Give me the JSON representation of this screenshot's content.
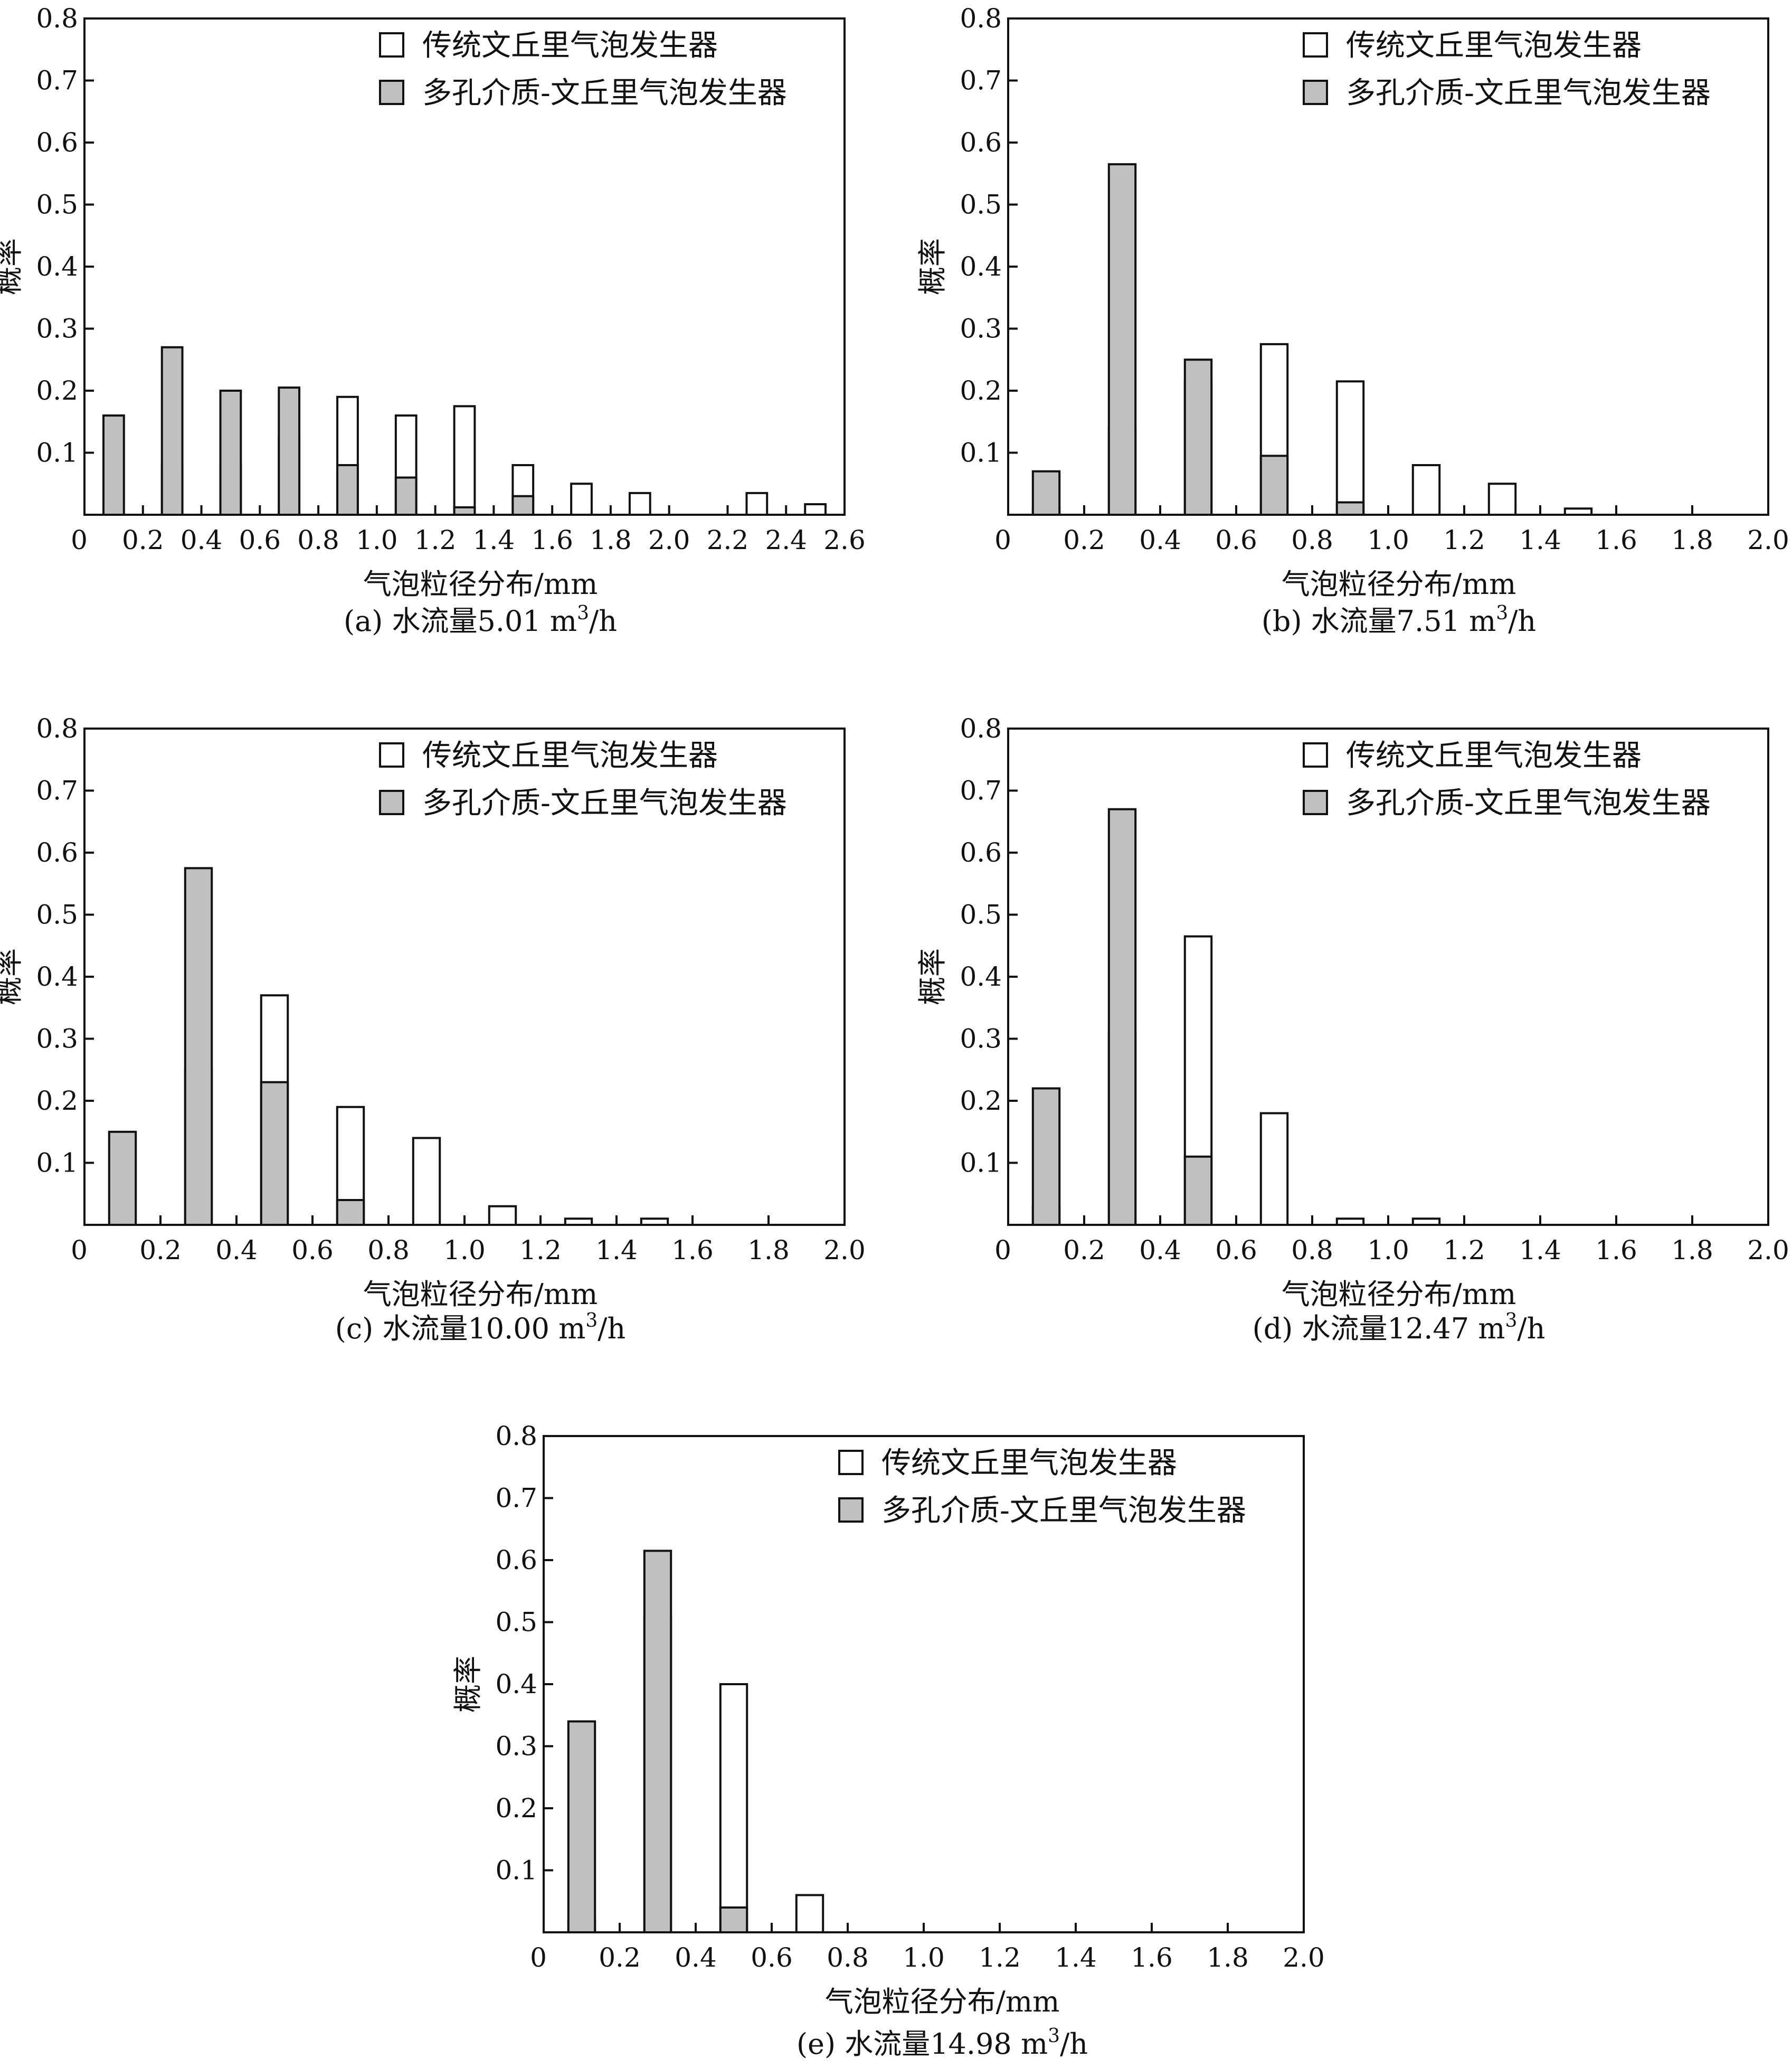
{
  "legend": {
    "traditional": "传统文丘里气泡发生器",
    "porous": "多孔介质-文丘里气泡发生器"
  },
  "colors": {
    "traditional_fill": "#ffffff",
    "porous_fill": "#c0c0c0",
    "stroke": "#111111"
  },
  "chart_data": [
    {
      "id": "a",
      "type": "bar",
      "caption_prefix": "(a) 水流量5.01 m",
      "caption_sup": "3",
      "caption_suffix": "/h",
      "xlabel": "气泡粒径分布/mm",
      "ylabel": "概率",
      "xlim": [
        0,
        2.6
      ],
      "ylim": [
        0,
        0.8
      ],
      "xticks": [
        0.2,
        0.4,
        0.6,
        0.8,
        1.0,
        1.2,
        1.4,
        1.6,
        1.8,
        2.0,
        2.2,
        2.4,
        2.6
      ],
      "xtick_labels": [
        "0.2",
        "0.4",
        "0.6",
        "0.8",
        "1.0",
        "1.2",
        "1.4",
        "1.6",
        "1.8",
        "2.0",
        "2.2",
        "2.4",
        "2.6"
      ],
      "yticks": [
        0.1,
        0.2,
        0.3,
        0.4,
        0.5,
        0.6,
        0.7,
        0.8
      ],
      "ytick_labels": [
        "0.1",
        "0.2",
        "0.3",
        "0.4",
        "0.5",
        "0.6",
        "0.7",
        "0.8"
      ],
      "origin_label": "0",
      "bar_width": 0.07,
      "series": [
        {
          "name": "传统文丘里气泡发生器",
          "x": [
            0.3,
            0.5,
            0.7,
            0.9,
            1.1,
            1.3,
            1.5,
            1.7,
            1.9,
            2.3,
            2.5
          ],
          "values": [
            0.08,
            0.08,
            0.125,
            0.19,
            0.16,
            0.175,
            0.08,
            0.05,
            0.035,
            0.035,
            0.017
          ]
        },
        {
          "name": "多孔介质-文丘里气泡发生器",
          "x": [
            0.1,
            0.3,
            0.5,
            0.7,
            0.9,
            1.1,
            1.3,
            1.5
          ],
          "values": [
            0.16,
            0.27,
            0.2,
            0.205,
            0.08,
            0.06,
            0.012,
            0.03
          ]
        }
      ]
    },
    {
      "id": "b",
      "type": "bar",
      "caption_prefix": "(b) 水流量7.51 m",
      "caption_sup": "3",
      "caption_suffix": "/h",
      "xlabel": "气泡粒径分布/mm",
      "ylabel": "概率",
      "xlim": [
        0,
        2.0
      ],
      "ylim": [
        0,
        0.8
      ],
      "xticks": [
        0.2,
        0.4,
        0.6,
        0.8,
        1.0,
        1.2,
        1.4,
        1.6,
        1.8,
        2.0
      ],
      "xtick_labels": [
        "0.2",
        "0.4",
        "0.6",
        "0.8",
        "1.0",
        "1.2",
        "1.4",
        "1.6",
        "1.8",
        "2.0"
      ],
      "yticks": [
        0.1,
        0.2,
        0.3,
        0.4,
        0.5,
        0.6,
        0.7,
        0.8
      ],
      "ytick_labels": [
        "0.1",
        "0.2",
        "0.3",
        "0.4",
        "0.5",
        "0.6",
        "0.7",
        "0.8"
      ],
      "origin_label": "0",
      "bar_width": 0.07,
      "series": [
        {
          "name": "传统文丘里气泡发生器",
          "x": [
            0.1,
            0.3,
            0.5,
            0.7,
            0.9,
            1.1,
            1.3,
            1.5
          ],
          "values": [
            0.01,
            0.14,
            0.215,
            0.275,
            0.215,
            0.08,
            0.05,
            0.01
          ]
        },
        {
          "name": "多孔介质-文丘里气泡发生器",
          "x": [
            0.1,
            0.3,
            0.5,
            0.7,
            0.9
          ],
          "values": [
            0.07,
            0.565,
            0.25,
            0.095,
            0.02
          ]
        }
      ]
    },
    {
      "id": "c",
      "type": "bar",
      "caption_prefix": "(c) 水流量10.00 m",
      "caption_sup": "3",
      "caption_suffix": "/h",
      "xlabel": "气泡粒径分布/mm",
      "ylabel": "概率",
      "xlim": [
        0,
        2.0
      ],
      "ylim": [
        0,
        0.8
      ],
      "xticks": [
        0.2,
        0.4,
        0.6,
        0.8,
        1.0,
        1.2,
        1.4,
        1.6,
        1.8,
        2.0
      ],
      "xtick_labels": [
        "0.2",
        "0.4",
        "0.6",
        "0.8",
        "1.0",
        "1.2",
        "1.4",
        "1.6",
        "1.8",
        "2.0"
      ],
      "yticks": [
        0.1,
        0.2,
        0.3,
        0.4,
        0.5,
        0.6,
        0.7,
        0.8
      ],
      "ytick_labels": [
        "0.1",
        "0.2",
        "0.3",
        "0.4",
        "0.5",
        "0.6",
        "0.7",
        "0.8"
      ],
      "origin_label": "0",
      "bar_width": 0.07,
      "series": [
        {
          "name": "传统文丘里气泡发生器",
          "x": [
            0.3,
            0.5,
            0.7,
            0.9,
            1.1,
            1.3,
            1.5
          ],
          "values": [
            0.25,
            0.37,
            0.19,
            0.14,
            0.03,
            0.01,
            0.01
          ]
        },
        {
          "name": "多孔介质-文丘里气泡发生器",
          "x": [
            0.1,
            0.3,
            0.5,
            0.7
          ],
          "values": [
            0.15,
            0.575,
            0.23,
            0.04
          ]
        }
      ]
    },
    {
      "id": "d",
      "type": "bar",
      "caption_prefix": "(d) 水流量12.47 m",
      "caption_sup": "3",
      "caption_suffix": "/h",
      "xlabel": "气泡粒径分布/mm",
      "ylabel": "概率",
      "xlim": [
        0,
        2.0
      ],
      "ylim": [
        0,
        0.8
      ],
      "xticks": [
        0.2,
        0.4,
        0.6,
        0.8,
        1.0,
        1.2,
        1.4,
        1.6,
        1.8,
        2.0
      ],
      "xtick_labels": [
        "0.2",
        "0.4",
        "0.6",
        "0.8",
        "1.0",
        "1.2",
        "1.4",
        "1.6",
        "1.8",
        "2.0"
      ],
      "yticks": [
        0.1,
        0.2,
        0.3,
        0.4,
        0.5,
        0.6,
        0.7,
        0.8
      ],
      "ytick_labels": [
        "0.1",
        "0.2",
        "0.3",
        "0.4",
        "0.5",
        "0.6",
        "0.7",
        "0.8"
      ],
      "origin_label": "0",
      "bar_width": 0.07,
      "series": [
        {
          "name": "传统文丘里气泡发生器",
          "x": [
            0.1,
            0.3,
            0.5,
            0.7,
            0.9,
            1.1
          ],
          "values": [
            0.03,
            0.31,
            0.465,
            0.18,
            0.01,
            0.01
          ]
        },
        {
          "name": "多孔介质-文丘里气泡发生器",
          "x": [
            0.1,
            0.3,
            0.5
          ],
          "values": [
            0.22,
            0.67,
            0.11
          ]
        }
      ]
    },
    {
      "id": "e",
      "type": "bar",
      "caption_prefix": "(e) 水流量14.98 m",
      "caption_sup": "3",
      "caption_suffix": "/h",
      "xlabel": "气泡粒径分布/mm",
      "ylabel": "概率",
      "xlim": [
        0,
        2.0
      ],
      "ylim": [
        0,
        0.8
      ],
      "xticks": [
        0.2,
        0.4,
        0.6,
        0.8,
        1.0,
        1.2,
        1.4,
        1.6,
        1.8,
        2.0
      ],
      "xtick_labels": [
        "0.2",
        "0.4",
        "0.6",
        "0.8",
        "1.0",
        "1.2",
        "1.4",
        "1.6",
        "1.8",
        "2.0"
      ],
      "yticks": [
        0.1,
        0.2,
        0.3,
        0.4,
        0.5,
        0.6,
        0.7,
        0.8
      ],
      "ytick_labels": [
        "0.1",
        "0.2",
        "0.3",
        "0.4",
        "0.5",
        "0.6",
        "0.7",
        "0.8"
      ],
      "origin_label": "0",
      "bar_width": 0.07,
      "series": [
        {
          "name": "传统文丘里气泡发生器",
          "x": [
            0.1,
            0.3,
            0.5,
            0.7
          ],
          "values": [
            0.02,
            0.51,
            0.4,
            0.06
          ]
        },
        {
          "name": "多孔介质-文丘里气泡发生器",
          "x": [
            0.1,
            0.3,
            0.5
          ],
          "values": [
            0.34,
            0.615,
            0.04
          ]
        }
      ]
    }
  ]
}
